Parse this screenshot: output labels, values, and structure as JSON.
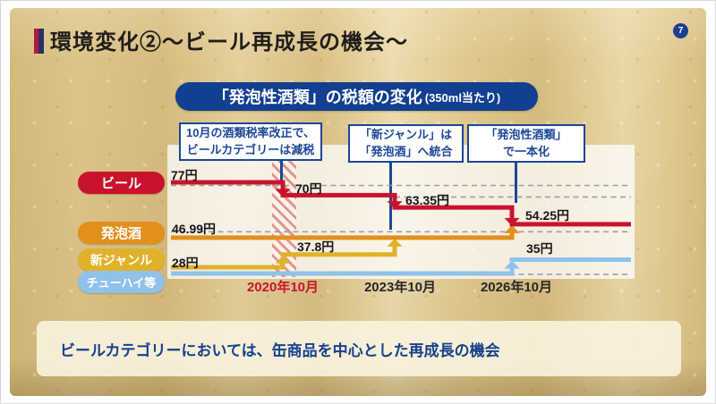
{
  "page": {
    "number": "7"
  },
  "header": {
    "title": "環境変化②〜ビール再成長の機会〜"
  },
  "chart": {
    "title": {
      "main": "「発泡性酒類」の税額の変化",
      "suffix": "(350ml当たり)"
    },
    "callouts": [
      {
        "line1": "10月の酒類税率改正で、",
        "line2": "ビールカテゴリーは減税"
      },
      {
        "line1": "「新ジャンル」は",
        "line2": "「発泡酒」へ統合"
      },
      {
        "line1": "「発泡性酒類」",
        "line2": "で一本化"
      }
    ],
    "categories": [
      {
        "label": "ビール",
        "color": "#c9132e"
      },
      {
        "label": "発泡酒",
        "color": "#e2901c"
      },
      {
        "label": "新ジャンル",
        "color": "#e0b22a"
      },
      {
        "label": "チューハイ等",
        "color": "#8fc2e9"
      }
    ],
    "value_labels": [
      "77円",
      "70円",
      "63.35円",
      "54.25円",
      "46.99円",
      "37.8円",
      "35円",
      "28円"
    ],
    "x_labels": [
      {
        "label": "2020年10月",
        "color": "#c9132e"
      },
      {
        "label": "2023年10月",
        "color": "#26262b"
      },
      {
        "label": "2026年10月",
        "color": "#26262b"
      }
    ],
    "chart_data": {
      "type": "line",
      "title": "「発泡性酒類」の税額の変化(350ml当たり)",
      "unit": "円",
      "x": [
        "",
        "2020年10月",
        "2023年10月",
        "2026年10月"
      ],
      "ylim": [
        25,
        80
      ],
      "grid": "dashed",
      "gridline_values": [
        77,
        70,
        46.99,
        28
      ],
      "series": [
        {
          "name": "ビール",
          "color": "#c9132e",
          "values": [
            77,
            70,
            63.35,
            54.25
          ]
        },
        {
          "name": "発泡酒",
          "color": "#e2901c",
          "values": [
            46.99,
            46.99,
            46.99,
            54.25
          ],
          "merges_into": "ビール",
          "merge_at": "2026年10月"
        },
        {
          "name": "新ジャンル",
          "color": "#e0b22a",
          "values": [
            28,
            37.8,
            46.99,
            54.25
          ],
          "merges_into": "発泡酒",
          "merge_at": "2023年10月"
        },
        {
          "name": "チューハイ等",
          "color": "#8fc2e9",
          "values": [
            28,
            28,
            28,
            35
          ]
        }
      ]
    }
  },
  "footer": {
    "message": "ビールカテゴリーにおいては、缶商品を中心とした再成長の機会"
  }
}
